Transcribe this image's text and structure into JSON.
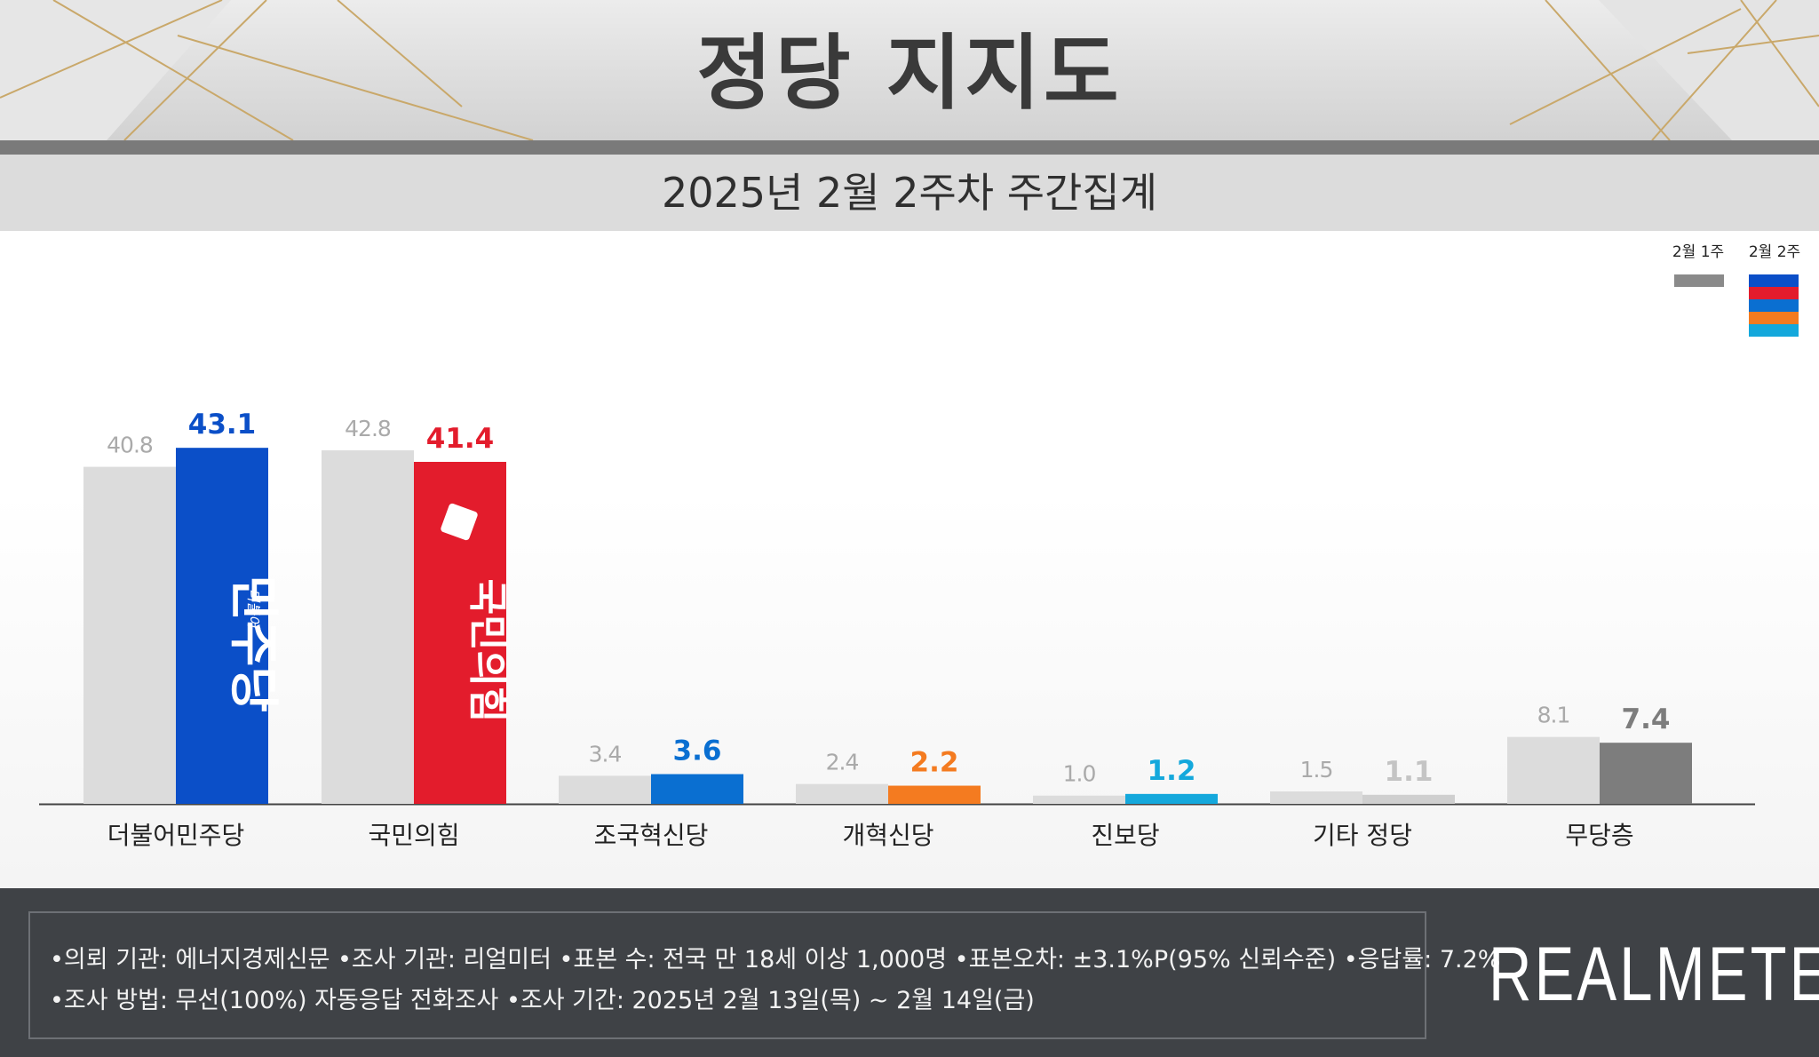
{
  "title": "정당 지지도",
  "subtitle": "2025년 2월 2주차 주간집계",
  "legend": {
    "prev_label": "2월 1주",
    "curr_label": "2월 2주",
    "prev_color": "#8a8a8a",
    "curr_colors": [
      "#0b4fc8",
      "#e31c2c",
      "#0a6fd1",
      "#f47b20",
      "#14a8dc"
    ]
  },
  "chart_data": {
    "type": "bar",
    "categories": [
      "더불어민주당",
      "국민의힘",
      "조국혁신당",
      "개혁신당",
      "진보당",
      "기타 정당",
      "무당층"
    ],
    "series": [
      {
        "name": "2월 1주",
        "values": [
          40.8,
          42.8,
          3.4,
          2.4,
          1.0,
          1.5,
          8.1
        ]
      },
      {
        "name": "2월 2주",
        "values": [
          43.1,
          41.4,
          3.6,
          2.2,
          1.2,
          1.1,
          7.4
        ]
      }
    ],
    "value_labels_prev": [
      "40.8",
      "42.8",
      "3.4",
      "2.4",
      "1.0",
      "1.5",
      "8.1"
    ],
    "value_labels_curr": [
      "43.1",
      "41.4",
      "3.6",
      "2.2",
      "1.2",
      "1.1",
      "7.4"
    ],
    "colors_curr": [
      "#0b4fc8",
      "#e31c2c",
      "#0a6fd1",
      "#f47b20",
      "#14a8dc",
      "#cfcfcf",
      "#7d7d7d"
    ],
    "colors_curr_label": [
      "#0b4fc8",
      "#e31c2c",
      "#0a6fd1",
      "#f47b20",
      "#14a8dc",
      "#c4c4c4",
      "#7d7d7d"
    ],
    "color_prev_bar": "#dcdcdc",
    "color_prev_label": "#aaaaaa",
    "bar_logos": [
      "민주당",
      "국민의힘",
      "",
      "",
      "",
      "",
      ""
    ],
    "bar_logo_small": [
      "더불어",
      "",
      "",
      "",
      "",
      "",
      ""
    ],
    "ylim": [
      0,
      45
    ]
  },
  "notes": {
    "line1": "•의뢰 기관: 에너지경제신문   •조사 기관: 리얼미터 •표본 수: 전국 만 18세 이상 1,000명 •표본오차: ±3.1%P(95% 신뢰수준) •응답률: 7.2%",
    "line2": "•조사 방법: 무선(100%) 자동응답 전화조사 •조사 기간: 2025년 2월 13일(목) ~ 2월 14일(금)"
  },
  "brand": "REALMETER"
}
